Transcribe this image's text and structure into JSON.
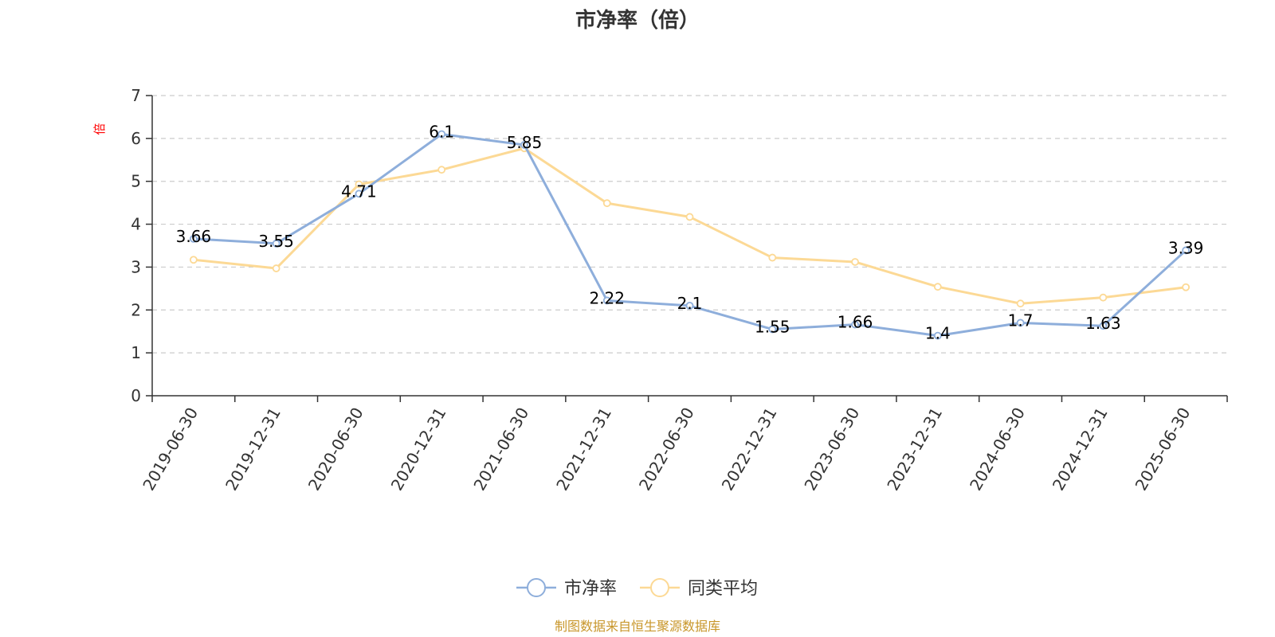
{
  "chart_data": {
    "type": "line",
    "title": "市净率（倍）",
    "ylabel": "倍",
    "xlabel": "",
    "ylim": [
      0,
      7
    ],
    "yticks": [
      0,
      1,
      2,
      3,
      4,
      5,
      6,
      7
    ],
    "grid": true,
    "legend_position": "bottom-center",
    "categories": [
      "2019-06-30",
      "2019-12-31",
      "2020-06-30",
      "2020-12-31",
      "2021-06-30",
      "2021-12-31",
      "2022-06-30",
      "2022-12-31",
      "2023-06-30",
      "2023-12-31",
      "2024-06-30",
      "2024-12-31",
      "2025-06-30"
    ],
    "series": [
      {
        "name": "市净率",
        "color": "#8eaedb",
        "values": [
          3.66,
          3.55,
          4.71,
          6.1,
          5.85,
          2.22,
          2.1,
          1.55,
          1.66,
          1.4,
          1.7,
          1.63,
          3.39
        ],
        "data_labels": [
          "3.66",
          "3.55",
          "4.71",
          "6.1",
          "5.85",
          "2.22",
          "2.1",
          "1.55",
          "1.66",
          "1.4",
          "1.7",
          "1.63",
          "3.39"
        ]
      },
      {
        "name": "同类平均",
        "color": "#fcd995",
        "values": [
          3.17,
          2.97,
          4.93,
          5.27,
          5.77,
          4.49,
          4.17,
          3.22,
          3.12,
          2.54,
          2.15,
          2.29,
          2.53
        ]
      }
    ]
  },
  "footer": {
    "source": "制图数据来自恒生聚源数据库"
  }
}
